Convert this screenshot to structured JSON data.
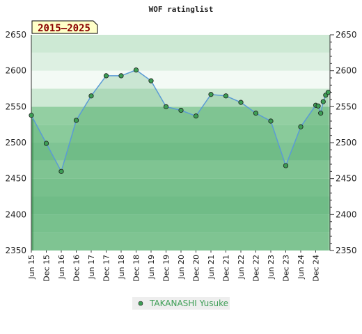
{
  "chart_data": {
    "type": "line",
    "title": "WOF ratinglist",
    "badge": "2015–2025",
    "ylim": [
      2350,
      2650
    ],
    "yticks": [
      2350,
      2400,
      2450,
      2500,
      2550,
      2600,
      2650
    ],
    "x_labels": [
      "Jun 15",
      "Dec 15",
      "Jun 16",
      "Dec 16",
      "Jun 17",
      "Dec 17",
      "Jun 18",
      "Dec 18",
      "Jun 19",
      "Dec 19",
      "Jun 20",
      "Dec 20",
      "Jun 21",
      "Dec 21",
      "Jun 22",
      "Dec 22",
      "Jun 23",
      "Dec 23",
      "Jun 24",
      "Dec 24"
    ],
    "legend_position": "bottom",
    "colors": {
      "line": "#5b9bd5",
      "marker": "#3d9e55",
      "legend_text": "#3d9e55"
    },
    "series": [
      {
        "name": "TAKANASHI Yusuke",
        "points": [
          [
            "2015-06",
            2538
          ],
          [
            "2015-12",
            2499
          ],
          [
            "2016-06",
            2460
          ],
          [
            "2016-12",
            2531
          ],
          [
            "2017-06",
            2565
          ],
          [
            "2017-12",
            2593
          ],
          [
            "2018-06",
            2593
          ],
          [
            "2018-12",
            2601
          ],
          [
            "2019-06",
            2586
          ],
          [
            "2019-12",
            2550
          ],
          [
            "2020-06",
            2545
          ],
          [
            "2020-12",
            2537
          ],
          [
            "2021-06",
            2567
          ],
          [
            "2021-12",
            2565
          ],
          [
            "2022-06",
            2556
          ],
          [
            "2022-12",
            2541
          ],
          [
            "2023-06",
            2530
          ],
          [
            "2023-12",
            2468
          ],
          [
            "2024-06",
            2522
          ],
          [
            "2024-12",
            2552
          ],
          [
            "2025-01",
            2551
          ],
          [
            "2025-02",
            2541
          ],
          [
            "2025-03",
            2557
          ],
          [
            "2025-04",
            2566
          ],
          [
            "2025-05",
            2570
          ]
        ]
      }
    ]
  }
}
